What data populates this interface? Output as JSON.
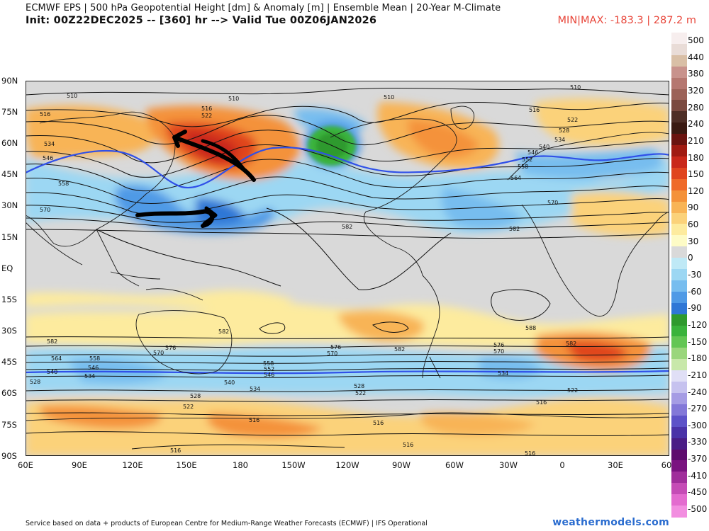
{
  "header": {
    "title": "ECMWF EPS | 500 hPa Geopotential Height [dm] & Anomaly [m] | Ensemble Mean | 20-Year M-Climate",
    "init": "Init: 00Z22DEC2025 -- [360] hr --> Valid Tue 00Z06JAN2026",
    "minmax": "MIN|MAX: -183.3 | 287.2 m"
  },
  "lat_labels": [
    "90N",
    "75N",
    "60N",
    "45N",
    "30N",
    "15N",
    "EQ",
    "15S",
    "30S",
    "45S",
    "60S",
    "75S",
    "90S"
  ],
  "lon_labels": [
    "60E",
    "90E",
    "120E",
    "150E",
    "180",
    "150W",
    "120W",
    "90W",
    "60W",
    "30W",
    "0",
    "30E",
    "60"
  ],
  "colorbar": {
    "labels": [
      "500",
      "440",
      "380",
      "320",
      "280",
      "240",
      "210",
      "180",
      "150",
      "120",
      "90",
      "60",
      "30",
      "0",
      "-30",
      "-60",
      "-90",
      "-120",
      "-150",
      "-180",
      "-210",
      "-240",
      "-270",
      "-300",
      "-330",
      "-370",
      "-410",
      "-450",
      "-500"
    ],
    "colors": [
      "#f7eeee",
      "#e9dcd7",
      "#d9bfa6",
      "#c8928c",
      "#b57770",
      "#9c6258",
      "#7a4a40",
      "#4e2e26",
      "#3a1a12",
      "#6a1410",
      "#a01b12",
      "#c9281a",
      "#e0451f",
      "#ef6a2a",
      "#f4923a",
      "#f8b456",
      "#fbd27a",
      "#fdeb9e",
      "#fdfbc6",
      "#d9d9d9",
      "#bfe9f6",
      "#9cd7f3",
      "#77bdef",
      "#4f9ae6",
      "#2f77d6",
      "#2f9a2e",
      "#3ab33c",
      "#63c654",
      "#9ad67c",
      "#c8e8aa",
      "#e0dff6",
      "#c6c2ef",
      "#a59ce4",
      "#8378d8",
      "#5d52c8",
      "#4a32a8",
      "#4a1d86",
      "#5e0c6e",
      "#7a1380",
      "#a02e9b",
      "#c54cb6",
      "#e36bcf",
      "#f28ee0"
    ]
  },
  "map": {
    "ocean_color": "#d9d9d9",
    "contour_labels": [
      "510",
      "516",
      "522",
      "528",
      "534",
      "540",
      "546",
      "552",
      "558",
      "564",
      "570",
      "576",
      "582",
      "588"
    ]
  },
  "footer": {
    "credit": "Service based on data + products of European Centre for Medium-Range Weather Forecasts (ECMWF) | IFS Operational",
    "brand": "weathermodels.com"
  }
}
